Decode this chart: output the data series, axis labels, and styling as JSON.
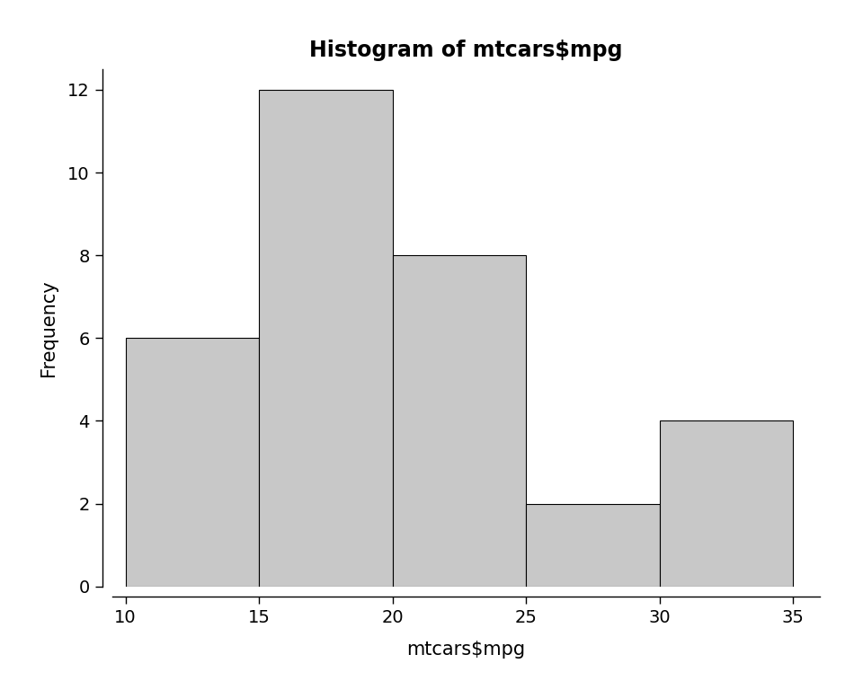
{
  "title": "Histogram of mtcars$mpg",
  "xlabel": "mtcars$mpg",
  "ylabel": "Frequency",
  "bin_edges": [
    10,
    15,
    20,
    25,
    30,
    35
  ],
  "bin_counts": [
    6,
    12,
    8,
    2,
    4
  ],
  "bar_color": "#c8c8c8",
  "bar_edgecolor": "#000000",
  "xlim": [
    9.5,
    36
  ],
  "ylim": [
    0,
    12.5
  ],
  "xticks": [
    10,
    15,
    20,
    25,
    30,
    35
  ],
  "yticks": [
    0,
    2,
    4,
    6,
    8,
    10,
    12
  ],
  "title_fontsize": 17,
  "axis_label_fontsize": 15,
  "tick_fontsize": 14,
  "background_color": "#ffffff"
}
